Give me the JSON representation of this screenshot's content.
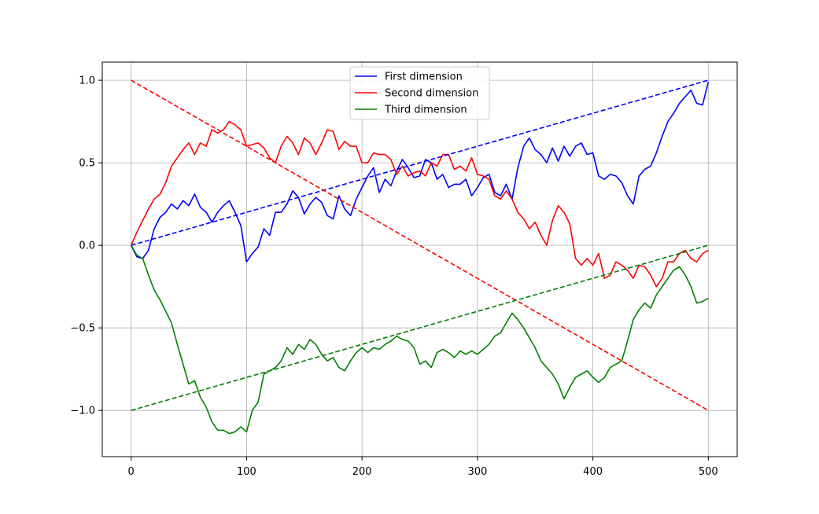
{
  "chart_data": {
    "type": "line",
    "xlim": [
      -25,
      525
    ],
    "ylim": [
      -1.28,
      1.11
    ],
    "grid": true,
    "legend": {
      "placement": "top-center"
    },
    "xticks": [
      {
        "value": 0,
        "label": "0"
      },
      {
        "value": 100,
        "label": "100"
      },
      {
        "value": 200,
        "label": "200"
      },
      {
        "value": 300,
        "label": "300"
      },
      {
        "value": 400,
        "label": "400"
      },
      {
        "value": 500,
        "label": "500"
      }
    ],
    "yticks": [
      {
        "value": 1.0,
        "label": "1.0"
      },
      {
        "value": 0.5,
        "label": "0.5"
      },
      {
        "value": 0.0,
        "label": "0.0"
      },
      {
        "value": -0.5,
        "label": "−0.5"
      },
      {
        "value": -1.0,
        "label": "−1.0"
      }
    ],
    "series": [
      {
        "name": "First dimension",
        "color": "#0000ff",
        "style": "solid",
        "points": [
          [
            0,
            0.0
          ],
          [
            5,
            -0.07
          ],
          [
            10,
            -0.08
          ],
          [
            15,
            -0.03
          ],
          [
            20,
            0.1
          ],
          [
            25,
            0.17
          ],
          [
            30,
            0.2
          ],
          [
            35,
            0.25
          ],
          [
            40,
            0.22
          ],
          [
            45,
            0.27
          ],
          [
            50,
            0.24
          ],
          [
            55,
            0.31
          ],
          [
            60,
            0.23
          ],
          [
            65,
            0.2
          ],
          [
            70,
            0.14
          ],
          [
            75,
            0.2
          ],
          [
            80,
            0.24
          ],
          [
            85,
            0.27
          ],
          [
            90,
            0.2
          ],
          [
            95,
            0.12
          ],
          [
            100,
            -0.1
          ],
          [
            105,
            -0.05
          ],
          [
            110,
            -0.01
          ],
          [
            115,
            0.1
          ],
          [
            120,
            0.06
          ],
          [
            125,
            0.2
          ],
          [
            130,
            0.2
          ],
          [
            135,
            0.25
          ],
          [
            140,
            0.33
          ],
          [
            145,
            0.29
          ],
          [
            150,
            0.19
          ],
          [
            155,
            0.25
          ],
          [
            160,
            0.29
          ],
          [
            165,
            0.26
          ],
          [
            170,
            0.18
          ],
          [
            175,
            0.16
          ],
          [
            180,
            0.3
          ],
          [
            185,
            0.22
          ],
          [
            190,
            0.18
          ],
          [
            195,
            0.28
          ],
          [
            200,
            0.35
          ],
          [
            205,
            0.42
          ],
          [
            210,
            0.47
          ],
          [
            215,
            0.32
          ],
          [
            220,
            0.4
          ],
          [
            225,
            0.36
          ],
          [
            230,
            0.45
          ],
          [
            235,
            0.52
          ],
          [
            240,
            0.47
          ],
          [
            245,
            0.41
          ],
          [
            250,
            0.42
          ],
          [
            255,
            0.52
          ],
          [
            260,
            0.5
          ],
          [
            265,
            0.4
          ],
          [
            270,
            0.43
          ],
          [
            275,
            0.35
          ],
          [
            280,
            0.37
          ],
          [
            285,
            0.37
          ],
          [
            290,
            0.4
          ],
          [
            295,
            0.3
          ],
          [
            300,
            0.35
          ],
          [
            305,
            0.41
          ],
          [
            310,
            0.43
          ],
          [
            315,
            0.32
          ],
          [
            320,
            0.3
          ],
          [
            325,
            0.37
          ],
          [
            330,
            0.28
          ],
          [
            335,
            0.47
          ],
          [
            340,
            0.6
          ],
          [
            345,
            0.65
          ],
          [
            350,
            0.58
          ],
          [
            355,
            0.55
          ],
          [
            360,
            0.5
          ],
          [
            365,
            0.59
          ],
          [
            370,
            0.51
          ],
          [
            375,
            0.6
          ],
          [
            380,
            0.54
          ],
          [
            385,
            0.6
          ],
          [
            390,
            0.62
          ],
          [
            395,
            0.55
          ],
          [
            400,
            0.56
          ],
          [
            405,
            0.42
          ],
          [
            410,
            0.4
          ],
          [
            415,
            0.43
          ],
          [
            420,
            0.42
          ],
          [
            425,
            0.38
          ],
          [
            430,
            0.3
          ],
          [
            435,
            0.25
          ],
          [
            440,
            0.42
          ],
          [
            445,
            0.46
          ],
          [
            450,
            0.48
          ],
          [
            455,
            0.56
          ],
          [
            460,
            0.66
          ],
          [
            465,
            0.75
          ],
          [
            470,
            0.8
          ],
          [
            475,
            0.86
          ],
          [
            480,
            0.9
          ],
          [
            485,
            0.94
          ],
          [
            490,
            0.86
          ],
          [
            495,
            0.85
          ],
          [
            500,
            0.99
          ]
        ]
      },
      {
        "name": "Second dimension",
        "color": "#ff0000",
        "style": "solid",
        "points": [
          [
            0,
            0.0
          ],
          [
            5,
            0.08
          ],
          [
            10,
            0.15
          ],
          [
            15,
            0.22
          ],
          [
            20,
            0.28
          ],
          [
            25,
            0.31
          ],
          [
            30,
            0.38
          ],
          [
            35,
            0.48
          ],
          [
            40,
            0.53
          ],
          [
            45,
            0.58
          ],
          [
            50,
            0.62
          ],
          [
            55,
            0.55
          ],
          [
            60,
            0.62
          ],
          [
            65,
            0.6
          ],
          [
            70,
            0.7
          ],
          [
            75,
            0.68
          ],
          [
            80,
            0.7
          ],
          [
            85,
            0.75
          ],
          [
            90,
            0.73
          ],
          [
            95,
            0.7
          ],
          [
            100,
            0.6
          ],
          [
            105,
            0.61
          ],
          [
            110,
            0.62
          ],
          [
            115,
            0.59
          ],
          [
            120,
            0.53
          ],
          [
            125,
            0.5
          ],
          [
            130,
            0.6
          ],
          [
            135,
            0.66
          ],
          [
            140,
            0.62
          ],
          [
            145,
            0.55
          ],
          [
            150,
            0.65
          ],
          [
            155,
            0.62
          ],
          [
            160,
            0.55
          ],
          [
            165,
            0.62
          ],
          [
            170,
            0.7
          ],
          [
            175,
            0.69
          ],
          [
            180,
            0.58
          ],
          [
            185,
            0.63
          ],
          [
            190,
            0.6
          ],
          [
            195,
            0.6
          ],
          [
            200,
            0.5
          ],
          [
            205,
            0.5
          ],
          [
            210,
            0.56
          ],
          [
            215,
            0.55
          ],
          [
            220,
            0.55
          ],
          [
            225,
            0.52
          ],
          [
            230,
            0.43
          ],
          [
            235,
            0.48
          ],
          [
            240,
            0.42
          ],
          [
            245,
            0.44
          ],
          [
            250,
            0.45
          ],
          [
            255,
            0.42
          ],
          [
            260,
            0.5
          ],
          [
            265,
            0.48
          ],
          [
            270,
            0.55
          ],
          [
            275,
            0.55
          ],
          [
            280,
            0.46
          ],
          [
            285,
            0.48
          ],
          [
            290,
            0.45
          ],
          [
            295,
            0.53
          ],
          [
            300,
            0.43
          ],
          [
            305,
            0.42
          ],
          [
            310,
            0.4
          ],
          [
            315,
            0.3
          ],
          [
            320,
            0.28
          ],
          [
            325,
            0.33
          ],
          [
            330,
            0.28
          ],
          [
            335,
            0.2
          ],
          [
            340,
            0.16
          ],
          [
            345,
            0.1
          ],
          [
            350,
            0.14
          ],
          [
            355,
            0.06
          ],
          [
            360,
            0.0
          ],
          [
            365,
            0.15
          ],
          [
            370,
            0.24
          ],
          [
            375,
            0.2
          ],
          [
            380,
            0.13
          ],
          [
            385,
            -0.08
          ],
          [
            390,
            -0.12
          ],
          [
            395,
            -0.08
          ],
          [
            400,
            -0.12
          ],
          [
            405,
            -0.05
          ],
          [
            410,
            -0.2
          ],
          [
            415,
            -0.18
          ],
          [
            420,
            -0.1
          ],
          [
            425,
            -0.12
          ],
          [
            430,
            -0.15
          ],
          [
            435,
            -0.2
          ],
          [
            440,
            -0.12
          ],
          [
            445,
            -0.13
          ],
          [
            450,
            -0.18
          ],
          [
            455,
            -0.25
          ],
          [
            460,
            -0.2
          ],
          [
            465,
            -0.1
          ],
          [
            470,
            -0.1
          ],
          [
            475,
            -0.05
          ],
          [
            480,
            -0.03
          ],
          [
            485,
            -0.08
          ],
          [
            490,
            -0.1
          ],
          [
            495,
            -0.05
          ],
          [
            500,
            -0.03
          ]
        ]
      },
      {
        "name": "Third dimension",
        "color": "#008000",
        "style": "solid",
        "points": [
          [
            0,
            0.0
          ],
          [
            5,
            -0.06
          ],
          [
            10,
            -0.08
          ],
          [
            15,
            -0.18
          ],
          [
            20,
            -0.27
          ],
          [
            25,
            -0.33
          ],
          [
            30,
            -0.4
          ],
          [
            35,
            -0.47
          ],
          [
            40,
            -0.6
          ],
          [
            45,
            -0.72
          ],
          [
            50,
            -0.84
          ],
          [
            55,
            -0.82
          ],
          [
            60,
            -0.92
          ],
          [
            65,
            -0.98
          ],
          [
            70,
            -1.07
          ],
          [
            75,
            -1.12
          ],
          [
            80,
            -1.12
          ],
          [
            85,
            -1.14
          ],
          [
            90,
            -1.13
          ],
          [
            95,
            -1.1
          ],
          [
            100,
            -1.13
          ],
          [
            105,
            -1.0
          ],
          [
            110,
            -0.95
          ],
          [
            115,
            -0.78
          ],
          [
            120,
            -0.76
          ],
          [
            125,
            -0.74
          ],
          [
            130,
            -0.7
          ],
          [
            135,
            -0.62
          ],
          [
            140,
            -0.66
          ],
          [
            145,
            -0.6
          ],
          [
            150,
            -0.63
          ],
          [
            155,
            -0.57
          ],
          [
            160,
            -0.6
          ],
          [
            165,
            -0.66
          ],
          [
            170,
            -0.7
          ],
          [
            175,
            -0.68
          ],
          [
            180,
            -0.74
          ],
          [
            185,
            -0.76
          ],
          [
            190,
            -0.7
          ],
          [
            195,
            -0.65
          ],
          [
            200,
            -0.62
          ],
          [
            205,
            -0.65
          ],
          [
            210,
            -0.62
          ],
          [
            215,
            -0.63
          ],
          [
            220,
            -0.6
          ],
          [
            225,
            -0.58
          ],
          [
            230,
            -0.55
          ],
          [
            235,
            -0.57
          ],
          [
            240,
            -0.58
          ],
          [
            245,
            -0.62
          ],
          [
            250,
            -0.72
          ],
          [
            255,
            -0.7
          ],
          [
            260,
            -0.74
          ],
          [
            265,
            -0.65
          ],
          [
            270,
            -0.63
          ],
          [
            275,
            -0.65
          ],
          [
            280,
            -0.68
          ],
          [
            285,
            -0.64
          ],
          [
            290,
            -0.66
          ],
          [
            295,
            -0.64
          ],
          [
            300,
            -0.66
          ],
          [
            305,
            -0.63
          ],
          [
            310,
            -0.6
          ],
          [
            315,
            -0.55
          ],
          [
            320,
            -0.53
          ],
          [
            325,
            -0.47
          ],
          [
            330,
            -0.41
          ],
          [
            335,
            -0.45
          ],
          [
            340,
            -0.5
          ],
          [
            345,
            -0.56
          ],
          [
            350,
            -0.62
          ],
          [
            355,
            -0.7
          ],
          [
            360,
            -0.74
          ],
          [
            365,
            -0.78
          ],
          [
            370,
            -0.84
          ],
          [
            375,
            -0.93
          ],
          [
            380,
            -0.86
          ],
          [
            385,
            -0.8
          ],
          [
            390,
            -0.78
          ],
          [
            395,
            -0.76
          ],
          [
            400,
            -0.8
          ],
          [
            405,
            -0.83
          ],
          [
            410,
            -0.8
          ],
          [
            415,
            -0.74
          ],
          [
            420,
            -0.72
          ],
          [
            425,
            -0.7
          ],
          [
            430,
            -0.58
          ],
          [
            435,
            -0.45
          ],
          [
            440,
            -0.39
          ],
          [
            445,
            -0.35
          ],
          [
            450,
            -0.38
          ],
          [
            455,
            -0.3
          ],
          [
            460,
            -0.25
          ],
          [
            465,
            -0.2
          ],
          [
            470,
            -0.15
          ],
          [
            475,
            -0.13
          ],
          [
            480,
            -0.18
          ],
          [
            485,
            -0.25
          ],
          [
            490,
            -0.35
          ],
          [
            495,
            -0.34
          ],
          [
            500,
            -0.32
          ]
        ]
      },
      {
        "color": "#0000ff",
        "style": "dashed",
        "points": [
          [
            0,
            0.0
          ],
          [
            500,
            1.0
          ]
        ]
      },
      {
        "color": "#ff0000",
        "style": "dashed",
        "points": [
          [
            0,
            1.0
          ],
          [
            500,
            -1.0
          ]
        ]
      },
      {
        "color": "#008000",
        "style": "dashed",
        "points": [
          [
            0,
            -1.0
          ],
          [
            500,
            0.0
          ]
        ]
      }
    ]
  }
}
